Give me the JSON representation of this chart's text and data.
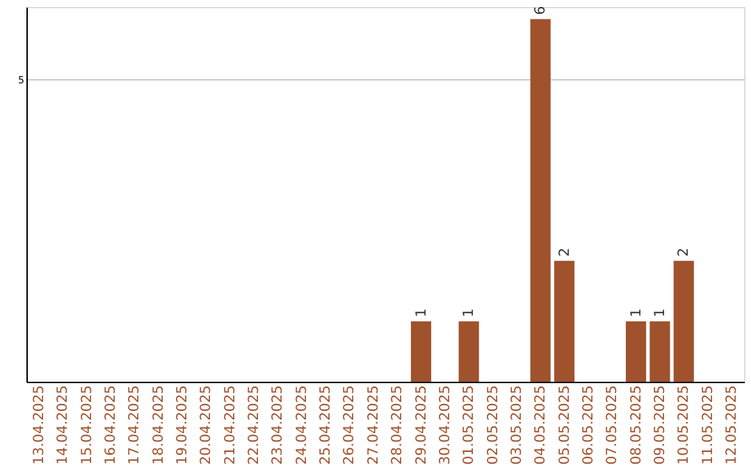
{
  "chart_data": {
    "type": "bar",
    "categories": [
      "13.04.2025",
      "14.04.2025",
      "15.04.2025",
      "16.04.2025",
      "17.04.2025",
      "18.04.2025",
      "19.04.2025",
      "20.04.2025",
      "21.04.2025",
      "22.04.2025",
      "23.04.2025",
      "24.04.2025",
      "25.04.2025",
      "26.04.2025",
      "27.04.2025",
      "28.04.2025",
      "29.04.2025",
      "30.04.2025",
      "01.05.2025",
      "02.05.2025",
      "03.05.2025",
      "04.05.2025",
      "05.05.2025",
      "06.05.2025",
      "07.05.2025",
      "08.05.2025",
      "09.05.2025",
      "10.05.2025",
      "11.05.2025",
      "12.05.2025"
    ],
    "values": [
      null,
      null,
      null,
      null,
      null,
      null,
      null,
      null,
      null,
      null,
      null,
      null,
      null,
      null,
      null,
      null,
      1,
      null,
      1,
      null,
      null,
      6,
      2,
      null,
      null,
      1,
      1,
      2,
      null,
      null
    ],
    "color": "#a0522d",
    "ylim": [
      0,
      6.2
    ],
    "yticks": [
      5
    ],
    "grid": "y",
    "data_labels": true
  }
}
